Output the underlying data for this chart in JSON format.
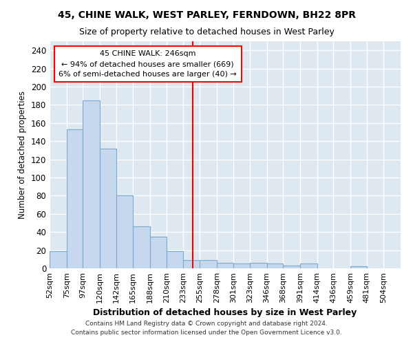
{
  "title": "45, CHINE WALK, WEST PARLEY, FERNDOWN, BH22 8PR",
  "subtitle": "Size of property relative to detached houses in West Parley",
  "xlabel": "Distribution of detached houses by size in West Parley",
  "ylabel": "Number of detached properties",
  "bar_color": "#c5d8ee",
  "bar_edge_color": "#7aaad0",
  "axes_bg_color": "#dde8f0",
  "grid_color": "#ffffff",
  "bins_labels": [
    "52sqm",
    "75sqm",
    "97sqm",
    "120sqm",
    "142sqm",
    "165sqm",
    "188sqm",
    "210sqm",
    "233sqm",
    "255sqm",
    "278sqm",
    "301sqm",
    "323sqm",
    "346sqm",
    "368sqm",
    "391sqm",
    "414sqm",
    "436sqm",
    "459sqm",
    "481sqm",
    "504sqm"
  ],
  "values": [
    19,
    153,
    185,
    132,
    80,
    46,
    35,
    19,
    9,
    9,
    6,
    5,
    6,
    5,
    3,
    5,
    0,
    0,
    2,
    0,
    0
  ],
  "bin_edges": [
    52,
    75,
    97,
    120,
    142,
    165,
    188,
    210,
    233,
    255,
    278,
    301,
    323,
    346,
    368,
    391,
    414,
    436,
    459,
    481,
    504,
    527
  ],
  "vline_x": 246,
  "property_label": "45 CHINE WALK: 246sqm",
  "annotation_line1": "← 94% of detached houses are smaller (669)",
  "annotation_line2": "6% of semi-detached houses are larger (40) →",
  "footnote1": "Contains HM Land Registry data © Crown copyright and database right 2024.",
  "footnote2": "Contains public sector information licensed under the Open Government Licence v3.0.",
  "ylim": [
    0,
    250
  ],
  "yticks": [
    0,
    20,
    40,
    60,
    80,
    100,
    120,
    140,
    160,
    180,
    200,
    220,
    240
  ],
  "fig_bg_color": "#ffffff"
}
